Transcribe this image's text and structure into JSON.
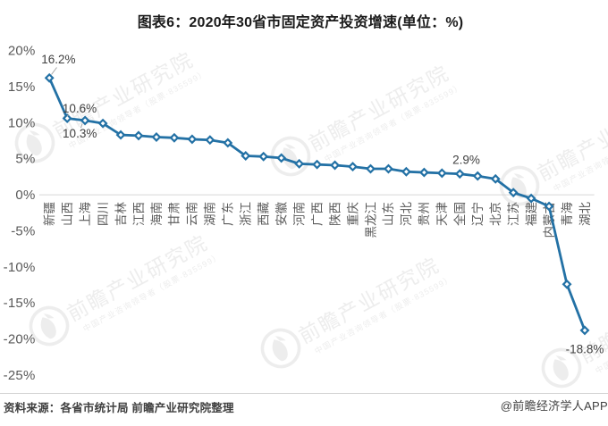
{
  "title": "图表6：2020年30省市固定资产投资增速(单位：%)",
  "footer": {
    "source": "资料来源：各省市统计局 前瞻产业研究院整理",
    "credit": "@前瞻经济学人APP"
  },
  "watermark": {
    "brand": "前瞻产业研究院",
    "tagline": "中国产业咨询领导者（股票·835599）"
  },
  "colors": {
    "line": "#2371a5",
    "marker_fill": "#ffffff",
    "axis_line": "#d6d6d6",
    "tick_label": "#595959",
    "category_label": "#595959",
    "data_label": "#404040",
    "leader_line": "#a6a6a6",
    "watermark": "#ededed",
    "title": "#1a1a1a"
  },
  "chart_data": {
    "type": "line",
    "title": "图表6：2020年30省市固定资产投资增速(单位：%)",
    "xlabel": "",
    "ylabel": "",
    "unit": "%",
    "categories": [
      "新疆",
      "山西",
      "上海",
      "四川",
      "吉林",
      "江西",
      "海南",
      "甘肃",
      "云南",
      "湖南",
      "广东",
      "浙江",
      "西藏",
      "安徽",
      "河南",
      "广西",
      "陕西",
      "重庆",
      "黑龙江",
      "山东",
      "河北",
      "贵州",
      "天津",
      "全国",
      "辽宁",
      "北京",
      "江苏",
      "福建",
      "内蒙古",
      "青海",
      "湖北"
    ],
    "values": [
      16.2,
      10.6,
      10.3,
      9.9,
      8.3,
      8.2,
      8.0,
      7.9,
      7.7,
      7.6,
      7.2,
      5.4,
      5.3,
      5.1,
      4.3,
      4.2,
      4.1,
      3.9,
      3.6,
      3.6,
      3.2,
      3.1,
      3.0,
      2.9,
      2.6,
      2.2,
      0.3,
      -0.5,
      -1.6,
      -12.4,
      -18.8
    ],
    "y_ticks": [
      20,
      15,
      10,
      5,
      0,
      -5,
      -10,
      -15,
      -20,
      -25
    ],
    "y_tick_labels": [
      "20%",
      "15%",
      "10%",
      "5%",
      "0%",
      "-5%",
      "-10%",
      "-15%",
      "-20%",
      "-25%"
    ],
    "ylim": [
      -25,
      20
    ],
    "grid": false,
    "legend": false,
    "point_labels": [
      {
        "index": 0,
        "text": "16.2%"
      },
      {
        "index": 1,
        "text": "10.6%"
      },
      {
        "index": 2,
        "text": "10.3%"
      },
      {
        "index": 23,
        "text": "2.9%"
      },
      {
        "index": 30,
        "text": "-18.8%"
      }
    ]
  }
}
